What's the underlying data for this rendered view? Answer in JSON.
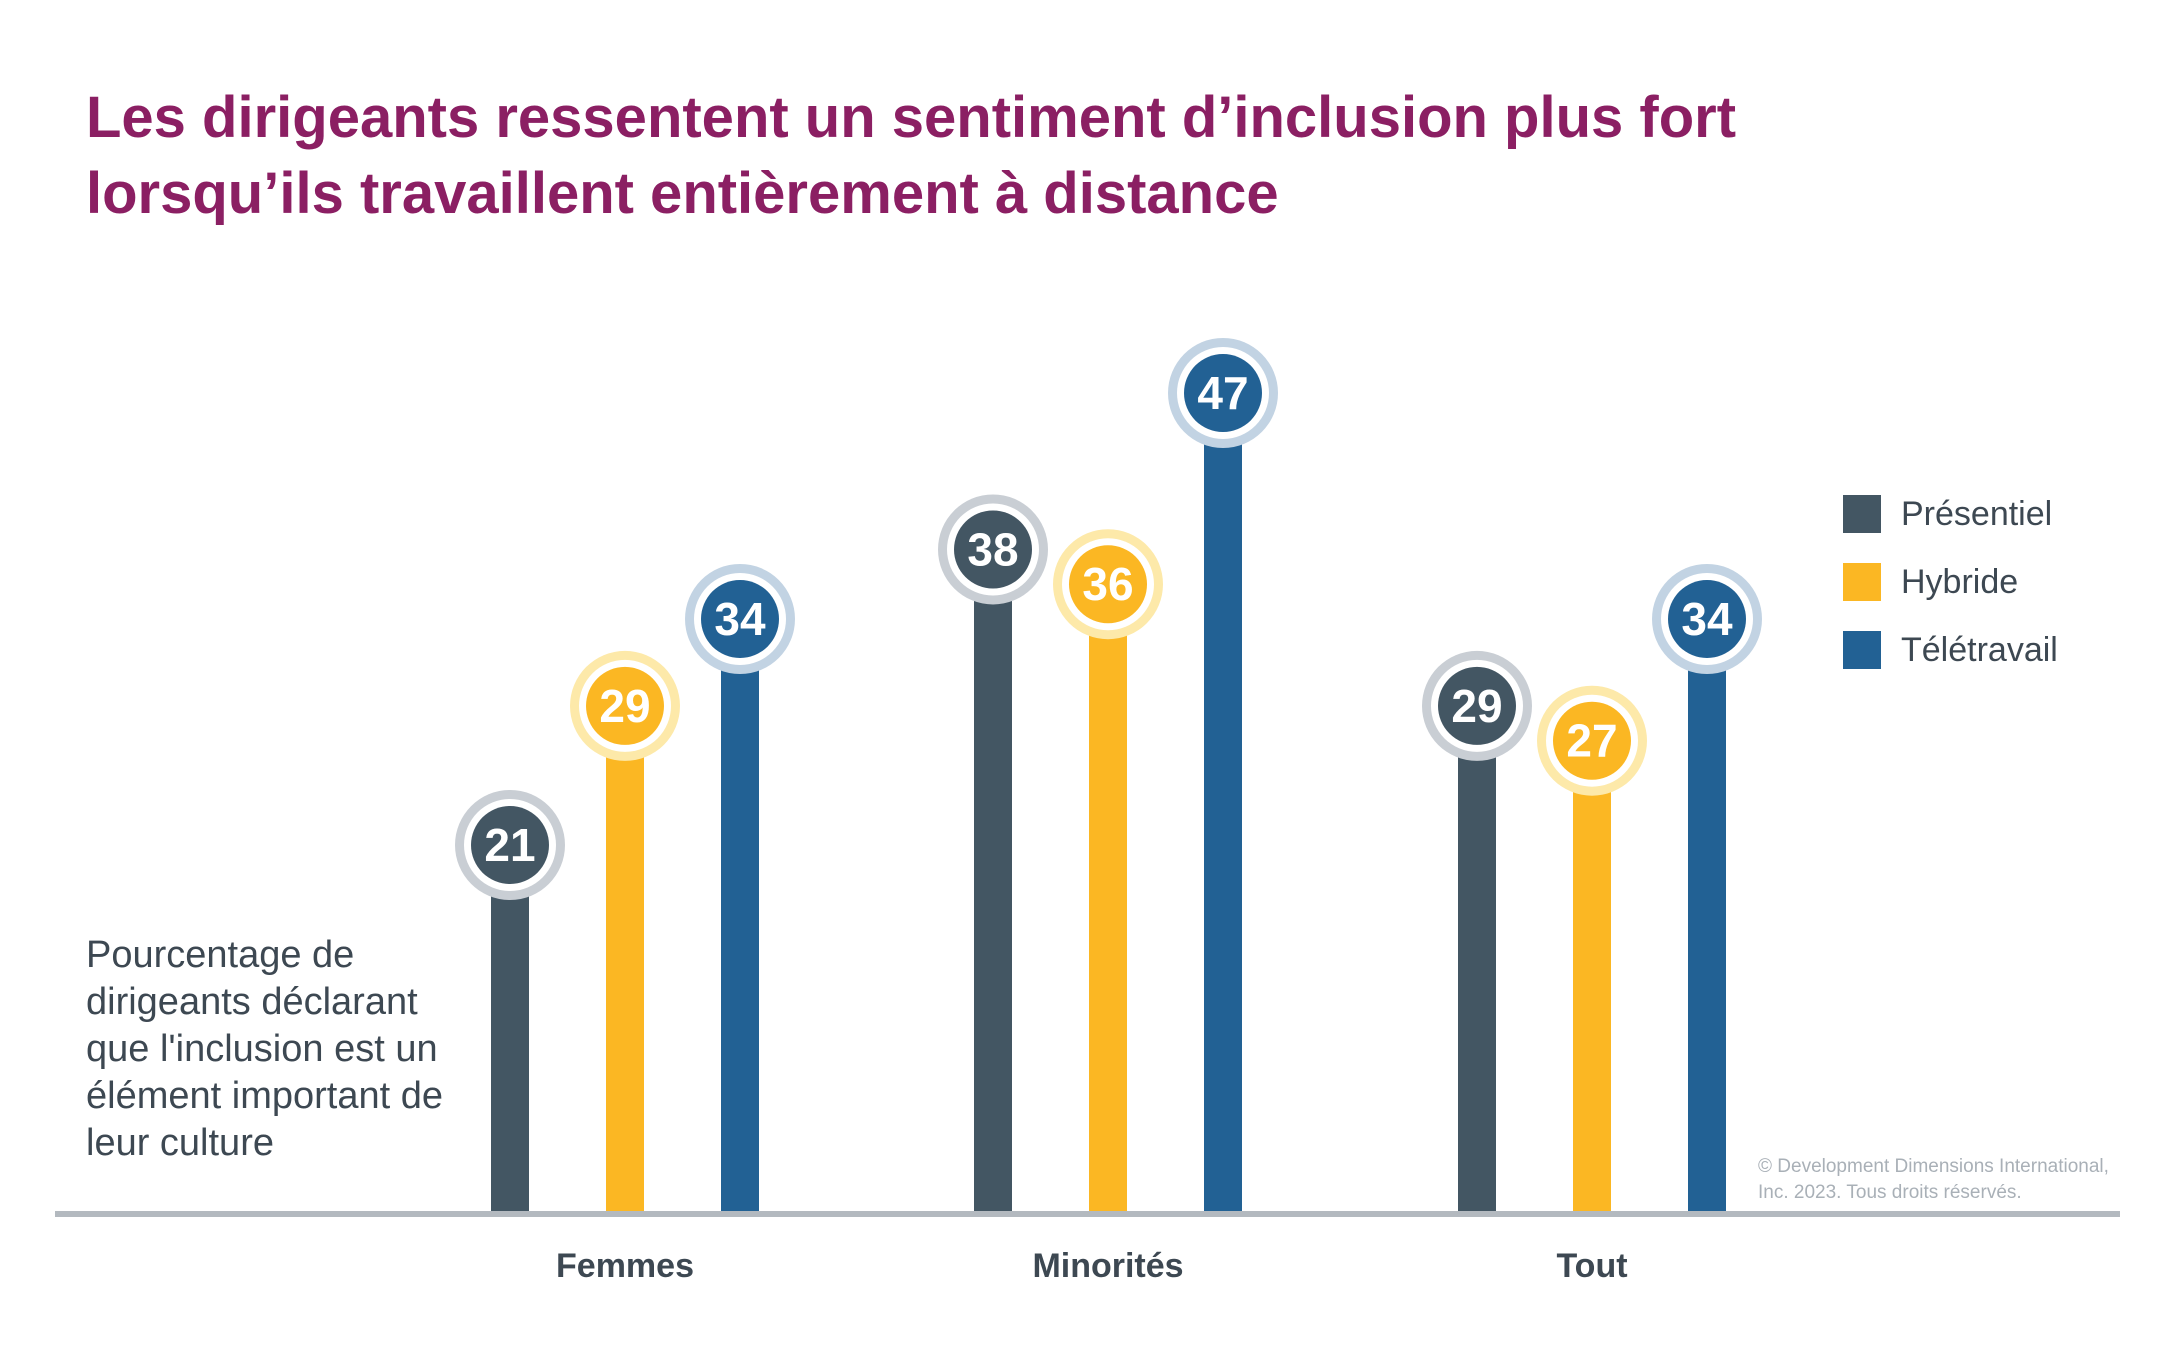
{
  "title": {
    "line1": "Les dirigeants ressentent un sentiment d’inclusion plus fort",
    "line2": "lorsqu’ils travaillent entièrement à distance"
  },
  "copyright": {
    "line1": "© Development Dimensions International,",
    "line2": "Inc. 2023. Tous droits réservés."
  },
  "chart_data": {
    "type": "bar",
    "title": "Les dirigeants ressentent un sentiment d’inclusion plus fort lorsqu’ils travaillent entièrement à distance",
    "ylabel_lines": [
      "Pourcentage de",
      "dirigeants déclarant",
      "que l'inclusion est un",
      "élément important de",
      "leur culture"
    ],
    "categories": [
      "Femmes",
      "Minorités",
      "Tout"
    ],
    "series": [
      {
        "name": "Présentiel",
        "color": "#435663",
        "light_color": "#c9ced4",
        "values": [
          21,
          38,
          29
        ]
      },
      {
        "name": "Hybride",
        "color": "#fbb723",
        "light_color": "#fde9a9",
        "values": [
          29,
          36,
          27
        ]
      },
      {
        "name": "Télétravail",
        "color": "#226194",
        "light_color": "#c2d3e3",
        "values": [
          34,
          47,
          34
        ]
      }
    ],
    "ylim": [
      0,
      47
    ],
    "grid": false,
    "legend_position": "right"
  }
}
